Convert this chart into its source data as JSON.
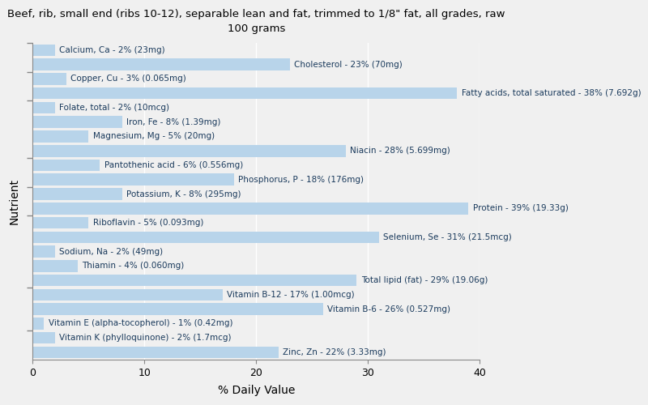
{
  "title": "Beef, rib, small end (ribs 10-12), separable lean and fat, trimmed to 1/8\" fat, all grades, raw\n100 grams",
  "xlabel": "% Daily Value",
  "ylabel": "Nutrient",
  "bar_color": "#b8d4ea",
  "background_color": "#f0f0f0",
  "plot_bg_color": "#f0f0f0",
  "xlim": [
    0,
    40
  ],
  "bar_height": 0.82,
  "label_fontsize": 7.5,
  "label_color": "#1a3a5c",
  "tick_color": "#555555",
  "grid_color": "#ffffff",
  "nutrients": [
    {
      "label": "Calcium, Ca - 2% (23mg)",
      "value": 2
    },
    {
      "label": "Cholesterol - 23% (70mg)",
      "value": 23
    },
    {
      "label": "Copper, Cu - 3% (0.065mg)",
      "value": 3
    },
    {
      "label": "Fatty acids, total saturated - 38% (7.692g)",
      "value": 38
    },
    {
      "label": "Folate, total - 2% (10mcg)",
      "value": 2
    },
    {
      "label": "Iron, Fe - 8% (1.39mg)",
      "value": 8
    },
    {
      "label": "Magnesium, Mg - 5% (20mg)",
      "value": 5
    },
    {
      "label": "Niacin - 28% (5.699mg)",
      "value": 28
    },
    {
      "label": "Pantothenic acid - 6% (0.556mg)",
      "value": 6
    },
    {
      "label": "Phosphorus, P - 18% (176mg)",
      "value": 18
    },
    {
      "label": "Potassium, K - 8% (295mg)",
      "value": 8
    },
    {
      "label": "Protein - 39% (19.33g)",
      "value": 39
    },
    {
      "label": "Riboflavin - 5% (0.093mg)",
      "value": 5
    },
    {
      "label": "Selenium, Se - 31% (21.5mcg)",
      "value": 31
    },
    {
      "label": "Sodium, Na - 2% (49mg)",
      "value": 2
    },
    {
      "label": "Thiamin - 4% (0.060mg)",
      "value": 4
    },
    {
      "label": "Total lipid (fat) - 29% (19.06g)",
      "value": 29
    },
    {
      "label": "Vitamin B-12 - 17% (1.00mcg)",
      "value": 17
    },
    {
      "label": "Vitamin B-6 - 26% (0.527mg)",
      "value": 26
    },
    {
      "label": "Vitamin E (alpha-tocopherol) - 1% (0.42mg)",
      "value": 1
    },
    {
      "label": "Vitamin K (phylloquinone) - 2% (1.7mcg)",
      "value": 2
    },
    {
      "label": "Zinc, Zn - 22% (3.33mg)",
      "value": 22
    }
  ]
}
